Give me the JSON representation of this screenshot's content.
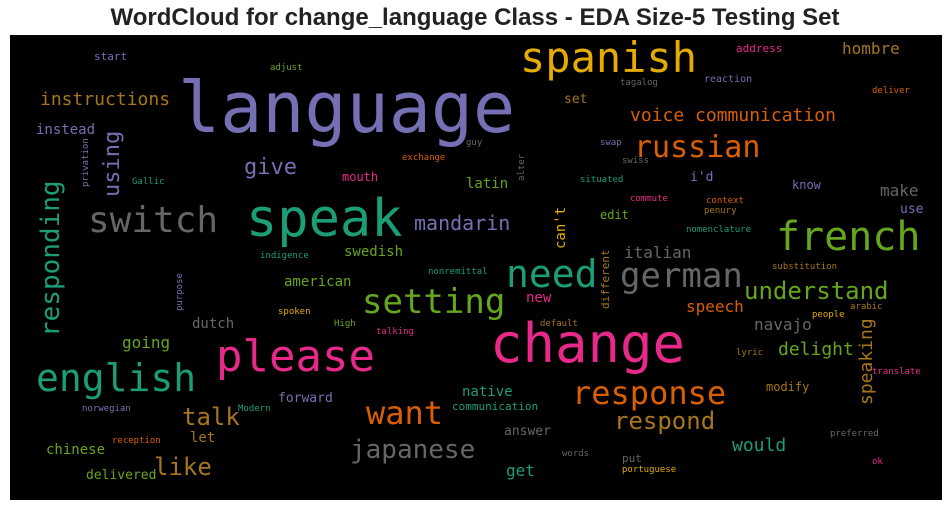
{
  "title": "WordCloud for change_language Class - EDA Size-5 Testing Set",
  "colors": {
    "purple": "#7570b3",
    "green": "#1b9e77",
    "orange": "#d95f02",
    "pink": "#e7298a",
    "lime": "#66a61e",
    "gold": "#e6ab02",
    "brown": "#a6761d",
    "gray": "#666666"
  },
  "words": [
    {
      "text": "language",
      "color": "#7570b3"
    },
    {
      "text": "spanish",
      "color": "#e6ab02"
    },
    {
      "text": "speak",
      "color": "#1b9e77"
    },
    {
      "text": "change",
      "color": "#e7298a"
    },
    {
      "text": "please",
      "color": "#e7298a"
    },
    {
      "text": "french",
      "color": "#66a61e"
    },
    {
      "text": "switch",
      "color": "#666666"
    },
    {
      "text": "english",
      "color": "#1b9e77"
    },
    {
      "text": "need",
      "color": "#1b9e77"
    },
    {
      "text": "german",
      "color": "#666666"
    },
    {
      "text": "setting",
      "color": "#66a61e"
    },
    {
      "text": "russian",
      "color": "#d95f02"
    },
    {
      "text": "want",
      "color": "#d95f02"
    },
    {
      "text": "response",
      "color": "#d95f02"
    },
    {
      "text": "understand",
      "color": "#66a61e"
    },
    {
      "text": "japanese",
      "color": "#666666"
    },
    {
      "text": "responding",
      "color": "#1b9e77"
    },
    {
      "text": "voice communication",
      "color": "#d95f02"
    },
    {
      "text": "instructions",
      "color": "#a6761d"
    },
    {
      "text": "using",
      "color": "#7570b3"
    },
    {
      "text": "give",
      "color": "#7570b3"
    },
    {
      "text": "mandarin",
      "color": "#7570b3"
    },
    {
      "text": "talk",
      "color": "#a6761d"
    },
    {
      "text": "like",
      "color": "#a6761d"
    },
    {
      "text": "respond",
      "color": "#a6761d"
    },
    {
      "text": "would",
      "color": "#1b9e77"
    },
    {
      "text": "speaking",
      "color": "#a6761d"
    },
    {
      "text": "italian",
      "color": "#666666"
    },
    {
      "text": "speech",
      "color": "#d95f02"
    },
    {
      "text": "delight",
      "color": "#66a61e"
    },
    {
      "text": "navajo",
      "color": "#666666"
    },
    {
      "text": "hombre",
      "color": "#a6761d"
    },
    {
      "text": "make",
      "color": "#666666"
    },
    {
      "text": "going",
      "color": "#66a61e"
    },
    {
      "text": "dutch",
      "color": "#666666"
    },
    {
      "text": "chinese",
      "color": "#66a61e"
    },
    {
      "text": "american",
      "color": "#66a61e"
    },
    {
      "text": "swedish",
      "color": "#66a61e"
    },
    {
      "text": "latin",
      "color": "#66a61e"
    },
    {
      "text": "instead",
      "color": "#7570b3"
    },
    {
      "text": "new",
      "color": "#e7298a"
    },
    {
      "text": "can't",
      "color": "#e6ab02"
    },
    {
      "text": "get",
      "color": "#1b9e77"
    },
    {
      "text": "native",
      "color": "#1b9e77"
    },
    {
      "text": "let",
      "color": "#a6761d"
    },
    {
      "text": "answer",
      "color": "#666666"
    },
    {
      "text": "forward",
      "color": "#7570b3"
    },
    {
      "text": "delivered",
      "color": "#66a61e"
    },
    {
      "text": "i'd",
      "color": "#7570b3"
    },
    {
      "text": "edit",
      "color": "#66a61e"
    },
    {
      "text": "modify",
      "color": "#a6761d"
    },
    {
      "text": "set",
      "color": "#a6761d"
    },
    {
      "text": "use",
      "color": "#7570b3"
    },
    {
      "text": "know",
      "color": "#7570b3"
    },
    {
      "text": "mouth",
      "color": "#e7298a"
    },
    {
      "text": "put",
      "color": "#666666"
    },
    {
      "text": "different",
      "color": "#a6761d"
    },
    {
      "text": "communication",
      "color": "#1b9e77"
    },
    {
      "text": "address",
      "color": "#e7298a"
    },
    {
      "text": "start",
      "color": "#7570b3"
    },
    {
      "text": "adjust",
      "color": "#66a61e"
    },
    {
      "text": "tagalog",
      "color": "#666666"
    },
    {
      "text": "reaction",
      "color": "#7570b3"
    },
    {
      "text": "deliver",
      "color": "#d95f02"
    },
    {
      "text": "guy",
      "color": "#666666"
    },
    {
      "text": "swap",
      "color": "#7570b3"
    },
    {
      "text": "swiss",
      "color": "#666666"
    },
    {
      "text": "exchange",
      "color": "#d95f02"
    },
    {
      "text": "situated",
      "color": "#1b9e77"
    },
    {
      "text": "commute",
      "color": "#e7298a"
    },
    {
      "text": "context",
      "color": "#d95f02"
    },
    {
      "text": "penury",
      "color": "#a6761d"
    },
    {
      "text": "nomenclature",
      "color": "#1b9e77"
    },
    {
      "text": "Gallic",
      "color": "#1b9e77"
    },
    {
      "text": "privation",
      "color": "#7570b3"
    },
    {
      "text": "alter",
      "color": "#666666"
    },
    {
      "text": "indigence",
      "color": "#1b9e77"
    },
    {
      "text": "nonremittal",
      "color": "#1b9e77"
    },
    {
      "text": "substitution",
      "color": "#a6761d"
    },
    {
      "text": "purpose",
      "color": "#7570b3"
    },
    {
      "text": "spoken",
      "color": "#e6ab02"
    },
    {
      "text": "High",
      "color": "#66a61e"
    },
    {
      "text": "talking",
      "color": "#e7298a"
    },
    {
      "text": "default",
      "color": "#a6761d"
    },
    {
      "text": "people",
      "color": "#e6ab02"
    },
    {
      "text": "arabic",
      "color": "#a6761d"
    },
    {
      "text": "lyric",
      "color": "#a6761d"
    },
    {
      "text": "translate",
      "color": "#e7298a"
    },
    {
      "text": "norwegian",
      "color": "#7570b3"
    },
    {
      "text": "Modern",
      "color": "#1b9e77"
    },
    {
      "text": "reception",
      "color": "#d95f02"
    },
    {
      "text": "words",
      "color": "#666666"
    },
    {
      "text": "portuguese",
      "color": "#e6ab02"
    },
    {
      "text": "preferred",
      "color": "#666666"
    },
    {
      "text": "ok",
      "color": "#e7298a"
    }
  ]
}
